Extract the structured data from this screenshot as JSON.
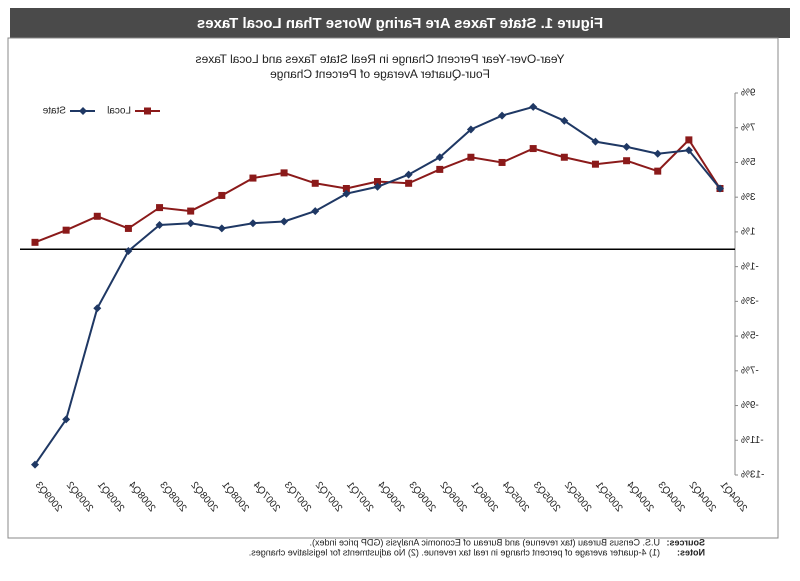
{
  "chart_data": {
    "type": "line",
    "title": "Figure 1. State Taxes Are Faring Worse Than Local Taxes",
    "subtitle": [
      "Year-Over-Year Percent Change in Real State Taxes and Local Taxes",
      "Four-Quarter Average of Percent Change"
    ],
    "categories": [
      "2004Q1",
      "2004Q2",
      "2004Q3",
      "2004Q4",
      "2005Q1",
      "2005Q2",
      "2005Q3",
      "2005Q4",
      "2006Q1",
      "2006Q2",
      "2006Q3",
      "2006Q4",
      "2007Q1",
      "2007Q2",
      "2007Q3",
      "2007Q4",
      "2008Q1",
      "2008Q2",
      "2008Q3",
      "2008Q4",
      "2009Q1",
      "2009Q2",
      "2009Q3"
    ],
    "series": [
      {
        "name": "Local",
        "color": "#8b1a1a",
        "values": [
          3.5,
          6.3,
          4.5,
          5.1,
          4.9,
          5.3,
          5.8,
          5.0,
          5.3,
          4.6,
          3.8,
          3.9,
          3.5,
          3.8,
          4.4,
          4.1,
          3.1,
          2.2,
          2.4,
          1.2,
          1.9,
          1.1,
          0.4
        ]
      },
      {
        "name": "State",
        "color": "#1f3864",
        "values": [
          3.5,
          5.7,
          5.5,
          5.9,
          6.2,
          7.4,
          8.2,
          7.7,
          6.9,
          5.3,
          4.3,
          3.6,
          3.2,
          2.2,
          1.6,
          1.5,
          1.2,
          1.5,
          1.4,
          -0.1,
          -3.4,
          -9.8,
          -12.4
        ]
      }
    ],
    "ylim": [
      -13,
      9
    ],
    "yticks": [
      {
        "value": 9,
        "label": "9%"
      },
      {
        "value": 7,
        "label": "7%"
      },
      {
        "value": 5,
        "label": "5%"
      },
      {
        "value": 3,
        "label": "3%"
      },
      {
        "value": 1,
        "label": "1%"
      },
      {
        "value": -1,
        "label": "-1%"
      },
      {
        "value": -3,
        "label": "-3%"
      },
      {
        "value": -5,
        "label": "-5%"
      },
      {
        "value": -7,
        "label": "-7%"
      },
      {
        "value": -9,
        "label": "-9%"
      },
      {
        "value": -11,
        "label": "-11%"
      },
      {
        "value": -13,
        "label": "-13%"
      }
    ],
    "legend": "top-right",
    "sources_label": "Sources:",
    "sources": "U.S. Census Bureau (tax revenue) and Bureau of Economic Analysis (GDP price index).",
    "notes_label": "Notes:",
    "notes": "(1) 4-quarter average of percent change in real tax revenue. (2) No adjustments for legislative changes."
  }
}
